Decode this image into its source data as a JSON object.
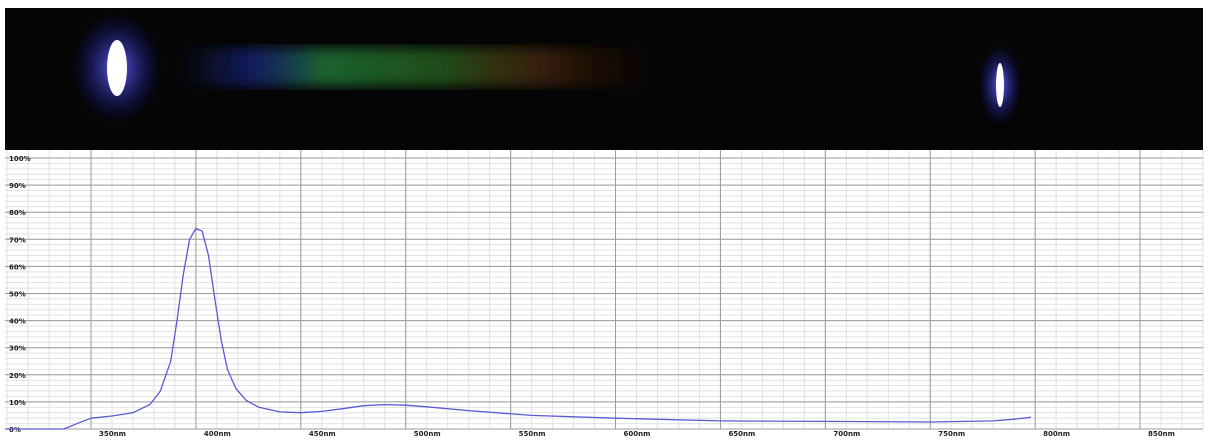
{
  "chart_data": {
    "type": "line",
    "x": [
      309,
      337,
      345,
      350,
      360,
      370,
      378,
      383,
      388,
      391,
      394,
      397,
      400,
      403,
      406,
      409,
      412,
      415,
      419,
      424,
      430,
      440,
      450,
      460,
      470,
      480,
      490,
      500,
      510,
      530,
      560,
      600,
      650,
      700,
      750,
      780,
      790,
      798
    ],
    "values": [
      0,
      0,
      2.5,
      4,
      4.8,
      6,
      9,
      14,
      25,
      40,
      57,
      70,
      74,
      73,
      64,
      48,
      33,
      22,
      15,
      10.5,
      8,
      6.3,
      6,
      6.5,
      7.5,
      8.6,
      9,
      8.8,
      8.2,
      6.8,
      5,
      4,
      3,
      2.8,
      2.6,
      3,
      3.6,
      4.3
    ],
    "color": "#5a5ad2",
    "xlim": [
      309,
      880
    ],
    "ylim": [
      0,
      100
    ],
    "xticks": [
      {
        "value": 350,
        "label": "350nm"
      },
      {
        "value": 400,
        "label": "400nm"
      },
      {
        "value": 450,
        "label": "450nm"
      },
      {
        "value": 500,
        "label": "500nm"
      },
      {
        "value": 550,
        "label": "550nm"
      },
      {
        "value": 600,
        "label": "600nm"
      },
      {
        "value": 650,
        "label": "650nm"
      },
      {
        "value": 700,
        "label": "700nm"
      },
      {
        "value": 750,
        "label": "750nm"
      },
      {
        "value": 800,
        "label": "800nm"
      },
      {
        "value": 850,
        "label": "850nm"
      }
    ],
    "yticks": [
      {
        "value": 0,
        "label": "0%"
      },
      {
        "value": 10,
        "label": "10%"
      },
      {
        "value": 20,
        "label": "20%"
      },
      {
        "value": 30,
        "label": "30%"
      },
      {
        "value": 40,
        "label": "40%"
      },
      {
        "value": 50,
        "label": "50%"
      },
      {
        "value": 60,
        "label": "60%"
      },
      {
        "value": 70,
        "label": "70%"
      },
      {
        "value": 80,
        "label": "80%"
      },
      {
        "value": 90,
        "label": "90%"
      },
      {
        "value": 100,
        "label": "100%"
      }
    ],
    "grid": true
  }
}
